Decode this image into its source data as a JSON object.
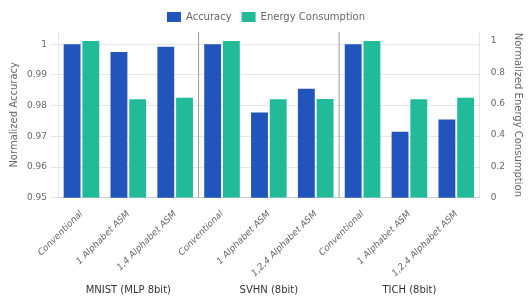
{
  "chart_data": {
    "type": "bar",
    "categories": [
      "Conventional",
      "1 Alphabet ASM",
      "1,4 Alphabet ASM",
      "Conventional",
      "1 Alphabet ASM",
      "1,2,4 Alphabet ASM",
      "Conventional",
      "1 Alphabet ASM",
      "1,2,4 Alphabet ASM"
    ],
    "series": [
      {
        "name": "Accuracy",
        "color": "#2255BB",
        "values": [
          1.0,
          0.9975,
          0.9992,
          1.0,
          0.9778,
          0.9855,
          1.0,
          0.9715,
          0.9755
        ]
      },
      {
        "name": "Energy Consumption",
        "color": "#22BB99",
        "axis": "y2",
        "values": [
          1.0,
          0.628,
          0.638,
          1.0,
          0.628,
          0.63,
          1.0,
          0.628,
          0.638
        ]
      }
    ],
    "ylabel": "Normalized Accuracy",
    "y2label": "Normalized Energy Consumption",
    "ylim": [
      0.95,
      1.004
    ],
    "yticks": [
      0.95,
      0.96,
      0.97,
      0.98,
      0.99,
      1
    ],
    "y2lim": [
      0,
      1.0567
    ],
    "y2ticks": [
      0,
      0.2,
      0.4,
      0.6,
      0.8,
      1
    ],
    "grid": true,
    "legend": "top",
    "annotations": [
      "MNIST (MLP 8bit)",
      "SVHN (8bit)",
      "TICH (8bit)"
    ]
  }
}
